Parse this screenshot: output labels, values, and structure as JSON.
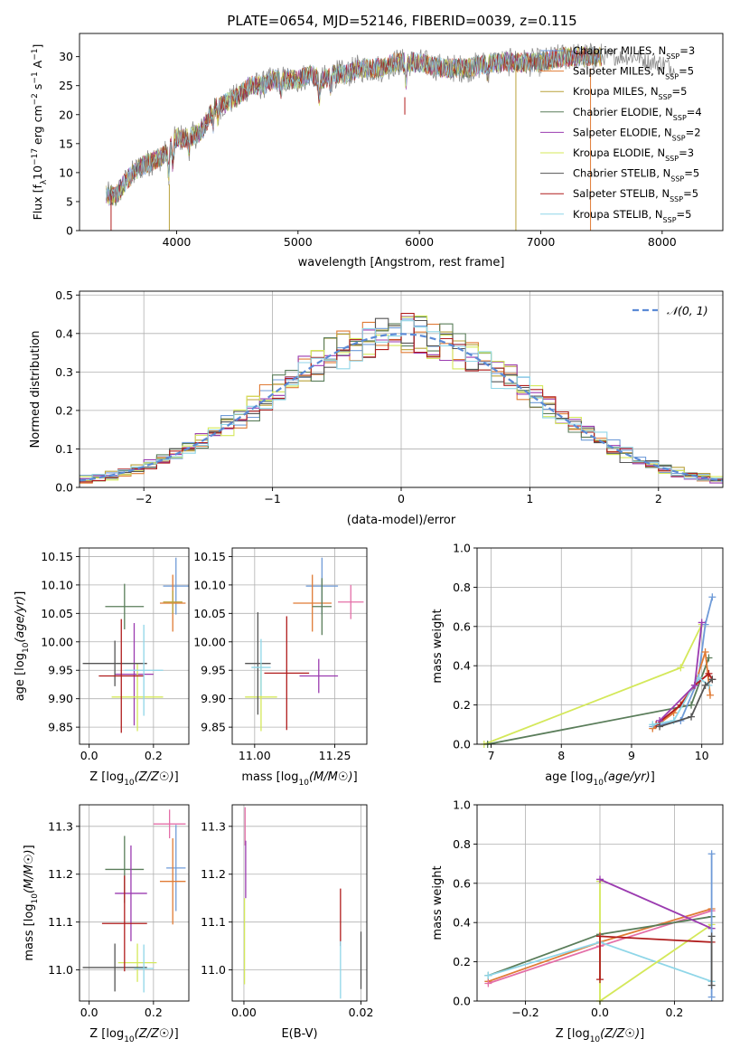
{
  "title": "PLATE=0654, MJD=52146, FIBERID=0039, z=0.115",
  "colors": {
    "chabrier_miles": "#6f9bd8",
    "salpeter_miles": "#e07b35",
    "kroupa_miles": "#b9a23a",
    "chabrier_elodie": "#5a7d5a",
    "salpeter_elodie": "#9b3bb0",
    "kroupa_elodie": "#d4e85a",
    "chabrier_stelib": "#555555",
    "salpeter_stelib": "#b01c1c",
    "kroupa_stelib": "#8fd6e8",
    "pink": "#e46fa8",
    "dashed_gauss": "#5b8ad6",
    "grid": "#b0b0b0"
  },
  "chart_data": [
    {
      "id": "spectrum",
      "type": "line",
      "xlabel": "wavelength [Angstrom, rest frame]",
      "ylabel": "Flux [f_λ 10^-17 erg cm^-2 s^-1 A^-1]",
      "xlim": [
        3200,
        8500
      ],
      "ylim": [
        0,
        34
      ],
      "xticks": [
        4000,
        5000,
        6000,
        7000,
        8000
      ],
      "yticks": [
        0,
        5,
        10,
        15,
        20,
        25,
        30
      ],
      "grid": false,
      "legend_position": "right",
      "legend": [
        {
          "label": "Chabrier MILES, N",
          "sub": "SSP",
          "suffix": "=3"
        },
        {
          "label": "Salpeter MILES, N",
          "sub": "SSP",
          "suffix": "=5"
        },
        {
          "label": "Kroupa MILES, N",
          "sub": "SSP",
          "suffix": "=5"
        },
        {
          "label": "Chabrier ELODIE, N",
          "sub": "SSP",
          "suffix": "=4"
        },
        {
          "label": "Salpeter ELODIE, N",
          "sub": "SSP",
          "suffix": "=2"
        },
        {
          "label": "Kroupa ELODIE, N",
          "sub": "SSP",
          "suffix": "=3"
        },
        {
          "label": "Chabrier STELIB, N",
          "sub": "SSP",
          "suffix": "=5"
        },
        {
          "label": "Salpeter STELIB, N",
          "sub": "SSP",
          "suffix": "=5"
        },
        {
          "label": "Kroupa STELIB, N",
          "sub": "SSP",
          "suffix": "=5"
        }
      ],
      "continuum": {
        "x": [
          3420,
          3500,
          3600,
          3700,
          3800,
          3900,
          4000,
          4100,
          4200,
          4300,
          4400,
          4500,
          4600,
          4700,
          4800,
          4900,
          5000,
          5100,
          5200,
          5300,
          5400,
          5500,
          5600,
          5700,
          5800,
          5900,
          6000,
          6200,
          6400,
          6600,
          6800,
          7000,
          7200,
          7400,
          7500
        ],
        "y": [
          6,
          6,
          9,
          11,
          12,
          13,
          16,
          16,
          17,
          21,
          22,
          23,
          25,
          25,
          26,
          26,
          26,
          27,
          26,
          27,
          27,
          28,
          28,
          28,
          29,
          29,
          29,
          28,
          28,
          29,
          29,
          29,
          30,
          30,
          30
        ]
      },
      "grey_extension": {
        "x": [
          7500,
          7600,
          7700,
          7800,
          7900,
          8000,
          8100
        ],
        "y": [
          30,
          30,
          30,
          30,
          29,
          29,
          28
        ]
      }
    },
    {
      "id": "residual_histogram",
      "type": "histogram",
      "xlabel": "(data-model)/error",
      "ylabel": "Normed distribution",
      "xlim": [
        -2.5,
        2.5
      ],
      "ylim": [
        0,
        0.51
      ],
      "xticks": [
        -2,
        -1,
        0,
        1,
        2
      ],
      "yticks": [
        0.0,
        0.1,
        0.2,
        0.3,
        0.4,
        0.5
      ],
      "grid": true,
      "legend_position": "top-right",
      "legend": [
        "𝒩(0, 1)"
      ],
      "bin_width": 0.1,
      "gaussian": {
        "mu": 0,
        "sigma": 1
      }
    },
    {
      "id": "age_vs_Z",
      "type": "errorbar",
      "xlabel": "Z [log10(Z/Z☉)]",
      "ylabel": "age  [log10(age/yr)]",
      "xlim": [
        -0.03,
        0.31
      ],
      "ylim": [
        9.82,
        10.165
      ],
      "xticks": [
        0.0,
        0.2
      ],
      "yticks": [
        9.85,
        9.9,
        9.95,
        10.0,
        10.05,
        10.1,
        10.15
      ],
      "grid": true,
      "points": [
        {
          "x": 0.27,
          "xe": 0.04,
          "y": 10.098,
          "ye": 0.05,
          "c": "chabrier_miles"
        },
        {
          "x": 0.26,
          "xe": 0.04,
          "y": 10.068,
          "ye": 0.05,
          "c": "salpeter_miles"
        },
        {
          "x": 0.26,
          "xe": 0.03,
          "y": 10.07,
          "ye": 0.02,
          "c": "kroupa_miles"
        },
        {
          "x": 0.11,
          "xe": 0.06,
          "y": 10.062,
          "ye": 0.04,
          "c": "chabrier_elodie"
        },
        {
          "x": 0.14,
          "xe": 0.06,
          "y": 9.943,
          "ye": 0.09,
          "c": "salpeter_elodie"
        },
        {
          "x": 0.15,
          "xe": 0.08,
          "y": 9.903,
          "ye": 0.06,
          "c": "kroupa_elodie"
        },
        {
          "x": 0.08,
          "xe": 0.1,
          "y": 9.962,
          "ye": 0.04,
          "c": "chabrier_stelib"
        },
        {
          "x": 0.1,
          "xe": 0.07,
          "y": 9.94,
          "ye": 0.1,
          "c": "salpeter_stelib"
        },
        {
          "x": 0.17,
          "xe": 0.06,
          "y": 9.95,
          "ye": 0.08,
          "c": "kroupa_stelib"
        }
      ]
    },
    {
      "id": "age_vs_mass",
      "type": "errorbar",
      "xlabel": "mass [log10(M/M☉)]",
      "ylabel": "",
      "xlim": [
        10.93,
        11.35
      ],
      "ylim": [
        9.82,
        10.165
      ],
      "xticks": [
        11.0,
        11.25
      ],
      "yticks": [
        9.85,
        9.9,
        9.95,
        10.0,
        10.05,
        10.1,
        10.15
      ],
      "grid": true,
      "points": [
        {
          "x": 11.21,
          "xe": 0.05,
          "y": 10.098,
          "ye": 0.05,
          "c": "chabrier_miles"
        },
        {
          "x": 11.18,
          "xe": 0.06,
          "y": 10.068,
          "ye": 0.05,
          "c": "salpeter_miles"
        },
        {
          "x": 11.3,
          "xe": 0.04,
          "y": 10.07,
          "ye": 0.03,
          "c": "pink"
        },
        {
          "x": 11.21,
          "xe": 0.03,
          "y": 10.062,
          "ye": 0.05,
          "c": "chabrier_elodie"
        },
        {
          "x": 11.2,
          "xe": 0.06,
          "y": 9.94,
          "ye": 0.03,
          "c": "salpeter_elodie"
        },
        {
          "x": 11.02,
          "xe": 0.05,
          "y": 9.903,
          "ye": 0.06,
          "c": "kroupa_elodie"
        },
        {
          "x": 11.01,
          "xe": 0.04,
          "y": 9.962,
          "ye": 0.09,
          "c": "chabrier_stelib"
        },
        {
          "x": 11.1,
          "xe": 0.07,
          "y": 9.945,
          "ye": 0.1,
          "c": "salpeter_stelib"
        },
        {
          "x": 11.02,
          "xe": 0.03,
          "y": 9.955,
          "ye": 0.05,
          "c": "kroupa_stelib"
        }
      ]
    },
    {
      "id": "weight_vs_age",
      "type": "line",
      "xlabel": "age  [log10(age/yr)]",
      "ylabel": "mass weight",
      "xlim": [
        6.8,
        10.3
      ],
      "ylim": [
        0,
        1.0
      ],
      "xticks": [
        7,
        8,
        9,
        10
      ],
      "yticks": [
        0.0,
        0.2,
        0.4,
        0.6,
        0.8,
        1.0
      ],
      "grid": true,
      "series": [
        {
          "c": "kroupa_elodie",
          "x": [
            6.9,
            9.7,
            10.0
          ],
          "y": [
            0.0,
            0.39,
            0.61
          ]
        },
        {
          "c": "chabrier_elodie",
          "x": [
            6.95,
            9.85,
            10.1
          ],
          "y": [
            0.0,
            0.2,
            0.44
          ]
        },
        {
          "c": "chabrier_miles",
          "x": [
            9.3,
            9.7,
            9.95,
            10.05,
            10.15
          ],
          "y": [
            0.09,
            0.12,
            0.33,
            0.61,
            0.75
          ]
        },
        {
          "c": "salpeter_miles",
          "x": [
            9.3,
            9.6,
            9.9,
            10.05,
            10.12
          ],
          "y": [
            0.08,
            0.16,
            0.3,
            0.47,
            0.25
          ]
        },
        {
          "c": "salpeter_stelib",
          "x": [
            9.35,
            9.7,
            9.9,
            10.1,
            10.15
          ],
          "y": [
            0.1,
            0.2,
            0.3,
            0.36,
            0.33
          ]
        },
        {
          "c": "kroupa_stelib",
          "x": [
            9.3,
            9.6,
            9.95,
            10.1
          ],
          "y": [
            0.1,
            0.12,
            0.34,
            0.3
          ]
        },
        {
          "c": "salpeter_elodie",
          "x": [
            9.4,
            9.9,
            10.0
          ],
          "y": [
            0.12,
            0.3,
            0.62
          ]
        },
        {
          "c": "chabrier_stelib",
          "x": [
            9.4,
            9.85,
            10.05,
            10.15
          ],
          "y": [
            0.09,
            0.14,
            0.3,
            0.33
          ]
        }
      ]
    },
    {
      "id": "mass_vs_Z",
      "type": "errorbar",
      "xlabel": "Z [log10(Z/Z☉)]",
      "ylabel": "mass [log10(M/M☉)]",
      "xlim": [
        -0.03,
        0.31
      ],
      "ylim": [
        10.935,
        11.345
      ],
      "xticks": [
        0.0,
        0.2
      ],
      "yticks": [
        11.0,
        11.1,
        11.2,
        11.3
      ],
      "grid": true,
      "points": [
        {
          "x": 0.27,
          "xe": 0.03,
          "y": 11.213,
          "ye": 0.09,
          "c": "chabrier_miles"
        },
        {
          "x": 0.26,
          "xe": 0.04,
          "y": 11.185,
          "ye": 0.09,
          "c": "salpeter_miles"
        },
        {
          "x": 0.25,
          "xe": 0.05,
          "y": 11.305,
          "ye": 0.03,
          "c": "pink"
        },
        {
          "x": 0.11,
          "xe": 0.06,
          "y": 11.21,
          "ye": 0.07,
          "c": "chabrier_elodie"
        },
        {
          "x": 0.13,
          "xe": 0.05,
          "y": 11.16,
          "ye": 0.1,
          "c": "salpeter_elodie"
        },
        {
          "x": 0.15,
          "xe": 0.06,
          "y": 11.015,
          "ye": 0.04,
          "c": "kroupa_elodie"
        },
        {
          "x": 0.08,
          "xe": 0.1,
          "y": 11.005,
          "ye": 0.05,
          "c": "chabrier_stelib"
        },
        {
          "x": 0.11,
          "xe": 0.07,
          "y": 11.097,
          "ye": 0.1,
          "c": "salpeter_stelib"
        },
        {
          "x": 0.17,
          "xe": 0.03,
          "y": 11.003,
          "ye": 0.05,
          "c": "kroupa_stelib"
        }
      ]
    },
    {
      "id": "mass_vs_EBV",
      "type": "errorbar",
      "xlabel": "E(B-V)",
      "ylabel": "",
      "xlim": [
        -0.002,
        0.021
      ],
      "ylim": [
        10.935,
        11.345
      ],
      "xticks": [
        0.0,
        0.02
      ],
      "yticks": [
        11.0,
        11.1,
        11.2,
        11.3
      ],
      "grid": true,
      "points": [
        {
          "x": 0.0002,
          "xe": 0.0,
          "y": 11.3,
          "ye": 0.04,
          "c": "pink"
        },
        {
          "x": 0.0003,
          "xe": 0.0,
          "y": 11.21,
          "ye": 0.06,
          "c": "salpeter_elodie"
        },
        {
          "x": 0.0001,
          "xe": 0.0,
          "y": 11.06,
          "ye": 0.09,
          "c": "kroupa_elodie"
        },
        {
          "x": 0.0165,
          "xe": 0.0,
          "y": 11.11,
          "ye": 0.06,
          "c": "salpeter_stelib"
        },
        {
          "x": 0.0165,
          "xe": 0.0,
          "y": 11.0,
          "ye": 0.06,
          "c": "kroupa_stelib"
        },
        {
          "x": 0.02,
          "xe": 0.0,
          "y": 11.02,
          "ye": 0.06,
          "c": "chabrier_stelib"
        }
      ]
    },
    {
      "id": "weight_vs_Z",
      "type": "line",
      "xlabel": "Z [log10(Z/Z☉)]",
      "ylabel": "mass weight",
      "xlim": [
        -0.33,
        0.33
      ],
      "ylim": [
        0,
        1.0
      ],
      "xticks": [
        -0.2,
        0.0,
        0.2
      ],
      "yticks": [
        0.0,
        0.2,
        0.4,
        0.6,
        0.8,
        1.0
      ],
      "grid": true,
      "series": [
        {
          "c": "salpeter_miles",
          "x": [
            -0.3,
            0.0,
            0.3
          ],
          "y": [
            0.1,
            0.3,
            0.47
          ]
        },
        {
          "c": "pink",
          "x": [
            -0.3,
            0.0,
            0.3
          ],
          "y": [
            0.09,
            0.28,
            0.46
          ]
        },
        {
          "c": "chabrier_elodie",
          "x": [
            -0.3,
            0.0,
            0.3
          ],
          "y": [
            0.13,
            0.34,
            0.43
          ]
        },
        {
          "c": "kroupa_stelib",
          "x": [
            -0.3,
            0.0,
            0.3
          ],
          "y": [
            0.13,
            0.3,
            0.1
          ]
        },
        {
          "c": "kroupa_elodie",
          "x": [
            0.0,
            0.0,
            0.3
          ],
          "y": [
            0.61,
            0.0,
            0.39
          ]
        },
        {
          "c": "salpeter_elodie",
          "x": [
            0.0,
            0.3
          ],
          "y": [
            0.62,
            0.37
          ]
        },
        {
          "c": "salpeter_stelib",
          "x": [
            0.0,
            0.0,
            0.3
          ],
          "y": [
            0.11,
            0.33,
            0.3
          ]
        },
        {
          "c": "chabrier_miles",
          "x": [
            0.3,
            0.3
          ],
          "y": [
            0.75,
            0.02
          ]
        },
        {
          "c": "chabrier_stelib",
          "x": [
            0.3,
            0.3
          ],
          "y": [
            0.33,
            0.08
          ]
        }
      ]
    }
  ]
}
